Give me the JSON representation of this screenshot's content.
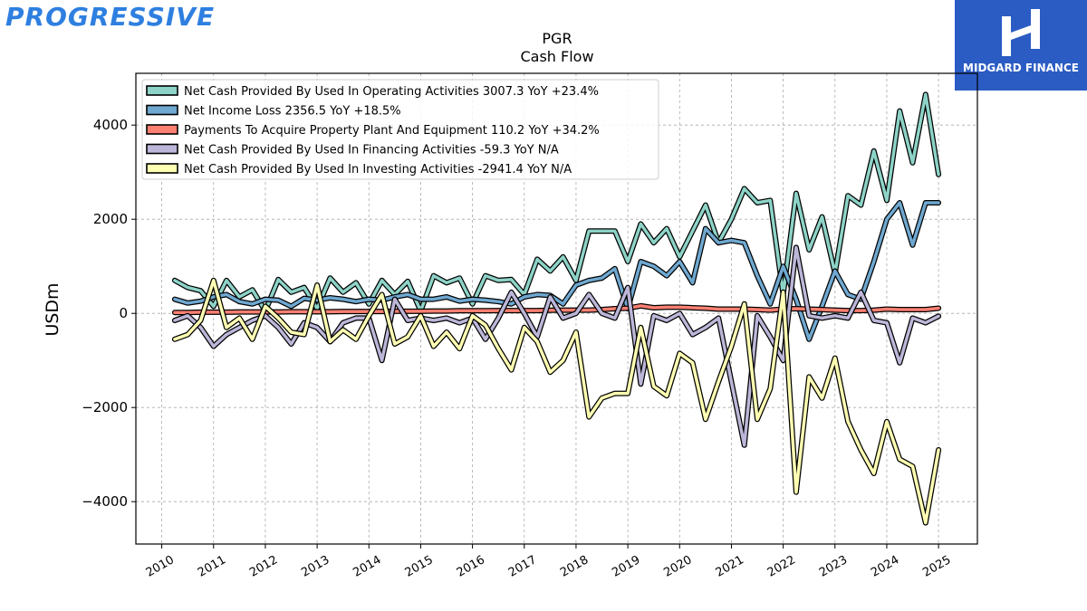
{
  "brand": {
    "left_logo": "PROGRESSIVE",
    "right_logo": "MIDGARD FINANCE"
  },
  "chart_data": {
    "type": "line",
    "title": "PGR",
    "subtitle": "Cash Flow",
    "ylabel": "USDm",
    "xlabel": "",
    "xlim": [
      2009.5,
      2025.75
    ],
    "ylim": [
      -4900,
      5100
    ],
    "yticks": [
      -4000,
      -2000,
      0,
      2000,
      4000
    ],
    "xticks": [
      "2010",
      "2011",
      "2012",
      "2013",
      "2014",
      "2015",
      "2016",
      "2017",
      "2018",
      "2019",
      "2020",
      "2021",
      "2022",
      "2023",
      "2024",
      "2025"
    ],
    "grid": true,
    "legend_position": "top-left",
    "series": [
      {
        "name": "Net Cash Provided By Used In Operating Activities",
        "legend": "Net Cash Provided By Used In Operating Activities  3007.3 YoY +23.4%",
        "color": "#8dd3c7",
        "x": [
          2010.25,
          2010.5,
          2010.75,
          2011.0,
          2011.25,
          2011.5,
          2011.75,
          2012.0,
          2012.25,
          2012.5,
          2012.75,
          2013.0,
          2013.25,
          2013.5,
          2013.75,
          2014.0,
          2014.25,
          2014.5,
          2014.75,
          2015.0,
          2015.25,
          2015.5,
          2015.75,
          2016.0,
          2016.25,
          2016.5,
          2016.75,
          2017.0,
          2017.25,
          2017.5,
          2017.75,
          2018.0,
          2018.25,
          2018.5,
          2018.75,
          2019.0,
          2019.25,
          2019.5,
          2019.75,
          2020.0,
          2020.25,
          2020.5,
          2020.75,
          2021.0,
          2021.25,
          2021.5,
          2021.75,
          2022.0,
          2022.25,
          2022.5,
          2022.75,
          2023.0,
          2023.25,
          2023.5,
          2023.75,
          2024.0,
          2024.25,
          2024.5,
          2024.75,
          2025.0
        ],
        "values": [
          700,
          550,
          480,
          150,
          700,
          350,
          500,
          50,
          720,
          450,
          550,
          100,
          750,
          450,
          650,
          200,
          700,
          400,
          680,
          50,
          800,
          650,
          750,
          200,
          800,
          700,
          720,
          400,
          1150,
          900,
          1200,
          700,
          1750,
          1750,
          1750,
          1100,
          1900,
          1500,
          1800,
          1200,
          1750,
          2300,
          1500,
          2000,
          2650,
          2350,
          2400,
          400,
          2550,
          1350,
          2050,
          850,
          2500,
          2300,
          3450,
          2400,
          4300,
          3200,
          4650,
          2950
        ]
      },
      {
        "name": "Net Income Loss",
        "legend": "Net Income Loss  2356.5 YoY +18.5%",
        "color": "#6fa8d0",
        "x": [
          2010.25,
          2010.5,
          2010.75,
          2011.0,
          2011.25,
          2011.5,
          2011.75,
          2012.0,
          2012.25,
          2012.5,
          2012.75,
          2013.0,
          2013.25,
          2013.5,
          2013.75,
          2014.0,
          2014.25,
          2014.5,
          2014.75,
          2015.0,
          2015.25,
          2015.5,
          2015.75,
          2016.0,
          2016.25,
          2016.5,
          2016.75,
          2017.0,
          2017.25,
          2017.5,
          2017.75,
          2018.0,
          2018.25,
          2018.5,
          2018.75,
          2019.0,
          2019.25,
          2019.5,
          2019.75,
          2020.0,
          2020.25,
          2020.5,
          2020.75,
          2021.0,
          2021.25,
          2021.5,
          2021.75,
          2022.0,
          2022.25,
          2022.5,
          2022.75,
          2023.0,
          2023.25,
          2023.5,
          2023.75,
          2024.0,
          2024.25,
          2024.5,
          2024.75,
          2025.0
        ],
        "values": [
          300,
          220,
          260,
          350,
          400,
          250,
          200,
          300,
          280,
          150,
          320,
          280,
          330,
          300,
          250,
          300,
          280,
          350,
          400,
          300,
          300,
          350,
          260,
          300,
          280,
          250,
          200,
          350,
          400,
          380,
          200,
          600,
          700,
          750,
          950,
          100,
          1100,
          1000,
          800,
          1100,
          650,
          1800,
          1500,
          1550,
          1500,
          800,
          200,
          1000,
          300,
          -550,
          150,
          900,
          400,
          300,
          1100,
          2000,
          2350,
          1450,
          2350,
          2350
        ]
      },
      {
        "name": "Payments To Acquire Property Plant And Equipment",
        "legend": "Payments To Acquire Property Plant And Equipment  110.2 YoY +34.2%",
        "color": "#fb8072",
        "x": [
          2010.25,
          2010.5,
          2010.75,
          2011.0,
          2011.25,
          2011.5,
          2011.75,
          2012.0,
          2012.25,
          2012.5,
          2012.75,
          2013.0,
          2013.25,
          2013.5,
          2013.75,
          2014.0,
          2014.25,
          2014.5,
          2014.75,
          2015.0,
          2015.25,
          2015.5,
          2015.75,
          2016.0,
          2016.25,
          2016.5,
          2016.75,
          2017.0,
          2017.25,
          2017.5,
          2017.75,
          2018.0,
          2018.25,
          2018.5,
          2018.75,
          2019.0,
          2019.25,
          2019.5,
          2019.75,
          2020.0,
          2020.25,
          2020.5,
          2020.75,
          2021.0,
          2021.25,
          2021.5,
          2021.75,
          2022.0,
          2022.25,
          2022.5,
          2022.75,
          2023.0,
          2023.25,
          2023.5,
          2023.75,
          2024.0,
          2024.25,
          2024.5,
          2024.75,
          2025.0
        ],
        "values": [
          20,
          20,
          25,
          25,
          25,
          30,
          30,
          30,
          30,
          35,
          35,
          35,
          35,
          40,
          40,
          40,
          40,
          45,
          45,
          45,
          50,
          50,
          55,
          55,
          55,
          60,
          60,
          60,
          60,
          65,
          70,
          70,
          70,
          80,
          100,
          110,
          160,
          120,
          130,
          130,
          120,
          110,
          90,
          90,
          90,
          80,
          70,
          90,
          100,
          90,
          80,
          70,
          60,
          60,
          70,
          90,
          80,
          80,
          80,
          110
        ]
      },
      {
        "name": "Net Cash Provided By Used In Financing Activities",
        "legend": "Net Cash Provided By Used In Financing Activities  -59.3 YoY N/A",
        "color": "#bcb6d8",
        "x": [
          2010.25,
          2010.5,
          2010.75,
          2011.0,
          2011.25,
          2011.5,
          2011.75,
          2012.0,
          2012.25,
          2012.5,
          2012.75,
          2013.0,
          2013.25,
          2013.5,
          2013.75,
          2014.0,
          2014.25,
          2014.5,
          2014.75,
          2015.0,
          2015.25,
          2015.5,
          2015.75,
          2016.0,
          2016.25,
          2016.5,
          2016.75,
          2017.0,
          2017.25,
          2017.5,
          2017.75,
          2018.0,
          2018.25,
          2018.5,
          2018.75,
          2019.0,
          2019.25,
          2019.5,
          2019.75,
          2020.0,
          2020.25,
          2020.5,
          2020.75,
          2021.0,
          2021.25,
          2021.5,
          2021.75,
          2022.0,
          2022.25,
          2022.5,
          2022.75,
          2023.0,
          2023.25,
          2023.5,
          2023.75,
          2024.0,
          2024.25,
          2024.5,
          2024.75,
          2025.0
        ],
        "values": [
          -150,
          -50,
          -300,
          -700,
          -450,
          -300,
          -150,
          -50,
          -300,
          -650,
          -200,
          -300,
          -600,
          -200,
          -100,
          -100,
          -1000,
          300,
          -150,
          -100,
          -150,
          -100,
          -200,
          -100,
          -550,
          -100,
          450,
          0,
          -500,
          350,
          -100,
          0,
          400,
          0,
          -100,
          550,
          -1500,
          -50,
          -150,
          0,
          -450,
          -300,
          -100,
          -1450,
          -2800,
          -50,
          -500,
          -1000,
          1400,
          -50,
          -100,
          -50,
          -100,
          450,
          -150,
          -200,
          -1050,
          -100,
          -200,
          -59
        ]
      },
      {
        "name": "Net Cash Provided By Used In Investing Activities",
        "legend": "Net Cash Provided By Used In Investing Activities  -2941.4 YoY N/A",
        "color": "#ffffb3",
        "x": [
          2010.25,
          2010.5,
          2010.75,
          2011.0,
          2011.25,
          2011.5,
          2011.75,
          2012.0,
          2012.25,
          2012.5,
          2012.75,
          2013.0,
          2013.25,
          2013.5,
          2013.75,
          2014.0,
          2014.25,
          2014.5,
          2014.75,
          2015.0,
          2015.25,
          2015.5,
          2015.75,
          2016.0,
          2016.25,
          2016.5,
          2016.75,
          2017.0,
          2017.25,
          2017.5,
          2017.75,
          2018.0,
          2018.25,
          2018.5,
          2018.75,
          2019.0,
          2019.25,
          2019.5,
          2019.75,
          2020.0,
          2020.25,
          2020.5,
          2020.75,
          2021.0,
          2021.25,
          2021.5,
          2021.75,
          2022.0,
          2022.25,
          2022.5,
          2022.75,
          2023.0,
          2023.25,
          2023.5,
          2023.75,
          2024.0,
          2024.25,
          2024.5,
          2024.75,
          2025.0
        ],
        "values": [
          -550,
          -450,
          -150,
          700,
          -300,
          -100,
          -550,
          150,
          -100,
          -400,
          -450,
          600,
          -600,
          -350,
          -550,
          -50,
          400,
          -650,
          -500,
          -50,
          -700,
          -400,
          -750,
          -50,
          -250,
          -750,
          -1200,
          -300,
          -600,
          -1250,
          -1000,
          -400,
          -2200,
          -1800,
          -1700,
          -1700,
          -300,
          -1550,
          -1750,
          -850,
          -1050,
          -2250,
          -1450,
          -700,
          200,
          -2250,
          -1600,
          450,
          -3800,
          -1350,
          -1800,
          -950,
          -2300,
          -2900,
          -3400,
          -2300,
          -3100,
          -3250,
          -4450,
          -2900
        ]
      }
    ]
  }
}
